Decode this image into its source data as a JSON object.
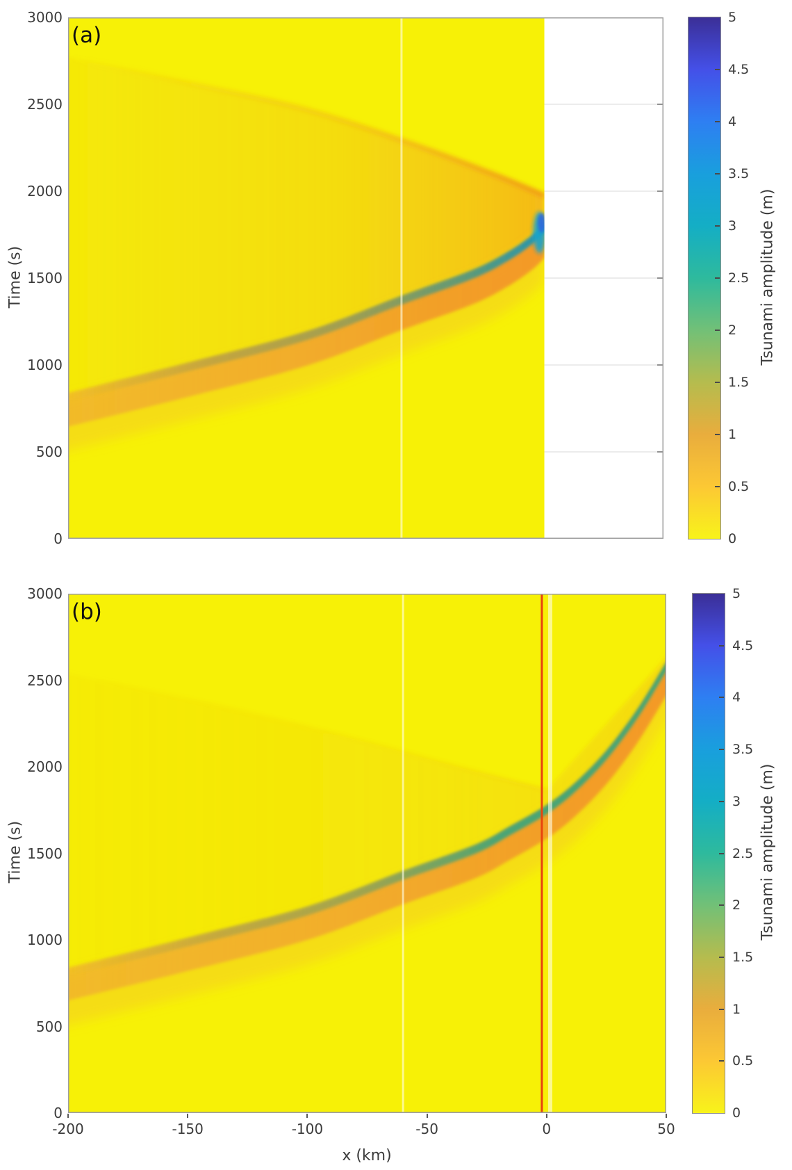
{
  "figure": {
    "panel_a_label": "(a)",
    "panel_b_label": "(b)",
    "time_axis_label": "Time (s)",
    "x_axis_label": "x (km)",
    "colorbar_label": "Tsunami amplitude (m)"
  },
  "colors": {
    "background_yellow": "#f7f106",
    "red_line": "#e8430d",
    "gauge_line": "rgba(255,255,235,0.6)",
    "frame": "#9e9e9e",
    "gridline": "#d9d9d9",
    "text": "#3c3c3c",
    "colormap_stops": [
      {
        "value": 0,
        "color": "#f8f31a"
      },
      {
        "value": 0.5,
        "color": "#fcc834"
      },
      {
        "value": 1,
        "color": "#e9ad3d"
      },
      {
        "value": 1.5,
        "color": "#b5bc4e"
      },
      {
        "value": 2,
        "color": "#72c077"
      },
      {
        "value": 2.5,
        "color": "#2eba9d"
      },
      {
        "value": 3,
        "color": "#14aec5"
      },
      {
        "value": 3.5,
        "color": "#199fdd"
      },
      {
        "value": 4,
        "color": "#2e7ff2"
      },
      {
        "value": 4.5,
        "color": "#4450e8"
      },
      {
        "value": 5,
        "color": "#3b2f97"
      }
    ]
  },
  "chart_data": [
    {
      "panel": "a",
      "type": "heatmap",
      "x_axis": {
        "label": "x (km)",
        "range": [
          -200,
          50
        ],
        "ticks": [
          -200,
          -150,
          -100,
          -50,
          0,
          50
        ],
        "tick_labels_shown": false
      },
      "t_axis": {
        "label": "Time (s)",
        "range": [
          0,
          3000
        ],
        "ticks": [
          0,
          500,
          1000,
          1500,
          2000,
          2500,
          3000
        ]
      },
      "colorbar": {
        "label": "Tsunami amplitude (m)",
        "range": [
          0,
          5
        ],
        "ticks": [
          0,
          0.5,
          1,
          1.5,
          2,
          2.5,
          3,
          3.5,
          4,
          4.5,
          5
        ]
      },
      "data_x_extent_km": [
        -200,
        0
      ],
      "incident_front_x_t": [
        [
          -212,
          800
        ],
        [
          -200,
          840
        ],
        [
          -150,
          1010
        ],
        [
          -100,
          1190
        ],
        [
          -60,
          1395
        ],
        [
          -30,
          1545
        ],
        [
          -15,
          1650
        ],
        [
          -5,
          1745
        ],
        [
          0,
          1812
        ]
      ],
      "reflected_front_x_t": [
        [
          0,
          1975
        ],
        [
          -20,
          2090
        ],
        [
          -55,
          2270
        ],
        [
          -100,
          2470
        ],
        [
          -150,
          2625
        ],
        [
          -200,
          2770
        ],
        [
          -212,
          2805
        ]
      ],
      "band_duration_s": 195,
      "coastal_peak": {
        "x_km": 0,
        "t_s": 1850,
        "amplitude_m": 4
      },
      "gauge_lines_x_km": [
        -60
      ]
    },
    {
      "panel": "b",
      "type": "heatmap",
      "x_axis": {
        "label": "x (km)",
        "range": [
          -200,
          50
        ],
        "ticks": [
          -200,
          -150,
          -100,
          -50,
          0,
          50
        ],
        "tick_labels_shown": true
      },
      "t_axis": {
        "label": "Time (s)",
        "range": [
          0,
          3000
        ],
        "ticks": [
          0,
          500,
          1000,
          1500,
          2000,
          2500,
          3000
        ]
      },
      "colorbar": {
        "label": "Tsunami amplitude (m)",
        "range": [
          0,
          5
        ],
        "ticks": [
          0,
          0.5,
          1,
          1.5,
          2,
          2.5,
          3,
          3.5,
          4,
          4.5,
          5
        ]
      },
      "data_x_extent_km": [
        -200,
        50
      ],
      "incident_front_x_t": [
        [
          -212,
          800
        ],
        [
          -200,
          840
        ],
        [
          -150,
          1010
        ],
        [
          -100,
          1190
        ],
        [
          -60,
          1395
        ],
        [
          -30,
          1545
        ],
        [
          -15,
          1655
        ],
        [
          0,
          1775
        ],
        [
          12,
          1905
        ],
        [
          25,
          2090
        ],
        [
          38,
          2330
        ],
        [
          50,
          2600
        ],
        [
          55,
          2710
        ]
      ],
      "reflected_front_x_t": [
        [
          0,
          1865
        ],
        [
          -40,
          2010
        ],
        [
          -80,
          2160
        ],
        [
          -130,
          2330
        ],
        [
          -200,
          2540
        ],
        [
          -212,
          2575
        ]
      ],
      "band_duration_s": 190,
      "red_line_x_km": -2,
      "gauge_lines_x_km": [
        -60,
        1.5
      ]
    }
  ]
}
